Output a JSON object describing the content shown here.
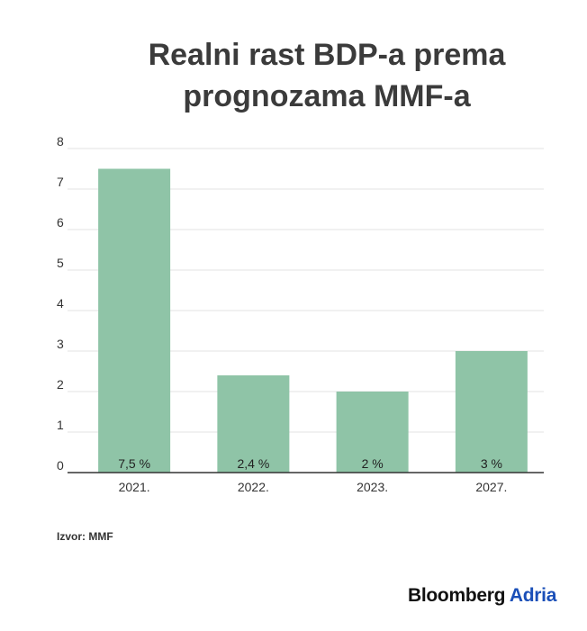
{
  "chart_data": {
    "type": "bar",
    "title_lines": [
      "Realni rast BDP-a prema",
      "prognozama MMF-a"
    ],
    "categories": [
      "2021.",
      "2022.",
      "2023.",
      "2027."
    ],
    "values": [
      7.5,
      2.4,
      2,
      3
    ],
    "data_labels": [
      "7,5 %",
      "2,4 %",
      "2 %",
      "3 %"
    ],
    "ylim": [
      0,
      8
    ],
    "yticks": [
      "0",
      "1",
      "2",
      "3",
      "4",
      "5",
      "6",
      "7",
      "8"
    ],
    "xlabel": "",
    "ylabel": "",
    "grid": true,
    "bar_color": "#8fc4a7"
  },
  "source": "Izvor: MMF",
  "brand": {
    "name": "Bloomberg",
    "suffix": "Adria",
    "name_color": "#111111",
    "suffix_color": "#1a4fb8"
  }
}
